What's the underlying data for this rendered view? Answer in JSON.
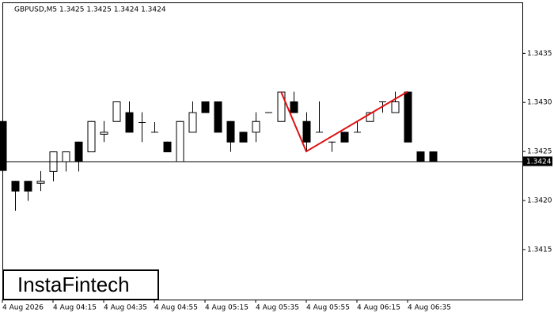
{
  "chart_data": {
    "type": "candlestick",
    "title": "GBPUSD,M5  1.3425 1.3425 1.3424 1.3424",
    "watermark": "InstaFintech",
    "categories": [
      "4 Aug 2026",
      null,
      null,
      null,
      "4 Aug 04:15",
      null,
      null,
      null,
      "4 Aug 04:35",
      null,
      null,
      null,
      "4 Aug 04:55",
      null,
      null,
      null,
      "4 Aug 05:15",
      null,
      null,
      null,
      "4 Aug 05:35",
      null,
      null,
      null,
      "4 Aug 05:55",
      null,
      null,
      null,
      "4 Aug 06:15",
      null,
      null,
      null,
      "4 Aug 06:35",
      null,
      null
    ],
    "open": [
      1.34281,
      1.3422,
      1.3422,
      1.34218,
      1.3423,
      1.3424,
      1.3426,
      1.3425,
      1.34268,
      1.34281,
      1.3429,
      1.3428,
      1.3427,
      1.3426,
      1.3424,
      1.3427,
      1.34301,
      1.34301,
      1.34281,
      1.3427,
      1.3427,
      1.3429,
      1.34281,
      1.34301,
      1.34281,
      1.3427,
      1.3426,
      1.3427,
      1.3427,
      1.34281,
      1.34301,
      1.3429,
      1.34311,
      1.3425,
      1.3425
    ],
    "high": [
      1.34281,
      1.3422,
      1.3422,
      1.3423,
      1.3425,
      1.3425,
      1.3426,
      1.34281,
      1.34281,
      1.34301,
      1.34301,
      1.3429,
      1.3428,
      1.3426,
      1.34281,
      1.34301,
      1.34301,
      1.34301,
      1.34281,
      1.3427,
      1.3429,
      1.3429,
      1.34311,
      1.34311,
      1.3429,
      1.34301,
      1.3426,
      1.3427,
      1.34281,
      1.3429,
      1.34301,
      1.34311,
      1.34311,
      1.3425,
      1.3425
    ],
    "low": [
      1.34231,
      1.3419,
      1.342,
      1.3421,
      1.3422,
      1.3423,
      1.3423,
      1.3425,
      1.3426,
      1.34281,
      1.3427,
      1.3426,
      1.3427,
      1.3425,
      1.3424,
      1.3427,
      1.3429,
      1.3427,
      1.3425,
      1.3426,
      1.3426,
      1.3429,
      1.34281,
      1.3429,
      1.3425,
      1.3427,
      1.3425,
      1.3426,
      1.3427,
      1.34281,
      1.3429,
      1.3429,
      1.3426,
      1.3424,
      1.3424
    ],
    "close": [
      1.34231,
      1.3421,
      1.3421,
      1.3422,
      1.3425,
      1.3425,
      1.3424,
      1.34281,
      1.3427,
      1.34301,
      1.3427,
      1.34281,
      1.3427,
      1.3425,
      1.34281,
      1.3429,
      1.3429,
      1.3427,
      1.3426,
      1.3426,
      1.34281,
      1.3429,
      1.34311,
      1.3429,
      1.3426,
      1.3427,
      1.3426,
      1.3426,
      1.3427,
      1.3429,
      1.34301,
      1.34301,
      1.3426,
      1.3424,
      1.3424
    ],
    "up_color": "#ffffff",
    "down_color": "#000000",
    "last_price": 1.3424,
    "pattern": {
      "color": "#e01010",
      "points": [
        {
          "index": 22,
          "value": 1.34311
        },
        {
          "index": 24,
          "value": 1.3425
        },
        {
          "index": 32,
          "value": 1.34311
        }
      ]
    },
    "ylim": [
      1.34099,
      1.34402
    ],
    "yticks": [
      1.3415,
      {
        "value": 1.342,
        "label": "1.3420"
      },
      1.3425,
      {
        "value": 1.343,
        "label": "1.3430"
      },
      1.3435
    ]
  }
}
